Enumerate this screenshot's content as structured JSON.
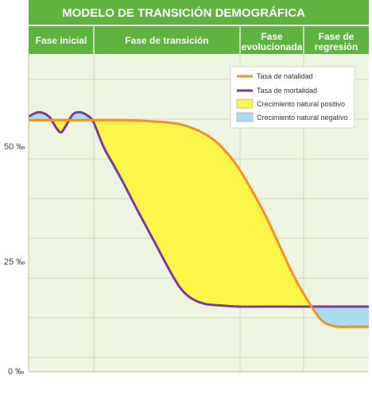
{
  "chart_data": {
    "type": "area",
    "title": "MODELO DE TRANSICIÓN DEMOGRÁFICA",
    "phases": [
      {
        "line1": "Fase inicial",
        "line2": ""
      },
      {
        "line1": "Fase de transición",
        "line2": ""
      },
      {
        "line1": "Fase",
        "line2": "evolucionada"
      },
      {
        "line1": "Fase de",
        "line2": "regresión"
      }
    ],
    "y_ticks": [
      "50 ‰",
      "25 ‰",
      "0 ‰"
    ],
    "ylim": [
      0,
      60
    ],
    "xlim": [
      0,
      100
    ],
    "grid": true,
    "legend_position": "top-right",
    "series": [
      {
        "name": "Tasa de natalidad",
        "color": "#f0902a",
        "x": [
          0,
          12,
          20,
          28,
          36,
          44,
          50,
          55,
          60,
          65,
          70,
          74,
          78,
          82,
          86,
          90,
          95,
          100
        ],
        "values": [
          47.5,
          47.5,
          47.5,
          47.5,
          47.3,
          46.8,
          45.5,
          43.5,
          40,
          35,
          29,
          23.5,
          18,
          13.5,
          9.8,
          8.6,
          8.5,
          8.5
        ]
      },
      {
        "name": "Tasa de mortalidad",
        "color": "#7a3d96",
        "x": [
          0,
          3,
          6,
          8,
          9.5,
          11,
          13,
          15,
          17,
          19,
          22,
          25,
          28,
          32,
          37,
          42,
          45,
          48,
          52,
          57,
          62,
          70,
          78,
          86,
          100
        ],
        "values": [
          48.2,
          49,
          48.2,
          46.2,
          45.2,
          46.5,
          48.6,
          49,
          48.5,
          47.2,
          42.5,
          39,
          35.5,
          30.5,
          24.5,
          18.5,
          15.5,
          13.8,
          12.8,
          12.5,
          12.3,
          12.3,
          12.3,
          12.3,
          12.3
        ]
      }
    ],
    "areas": [
      {
        "name": "Crecimiento natural positivo",
        "color": "#fdf64a"
      },
      {
        "name": "Crecimiento natural negativo",
        "color": "#a8dcf0"
      }
    ]
  }
}
